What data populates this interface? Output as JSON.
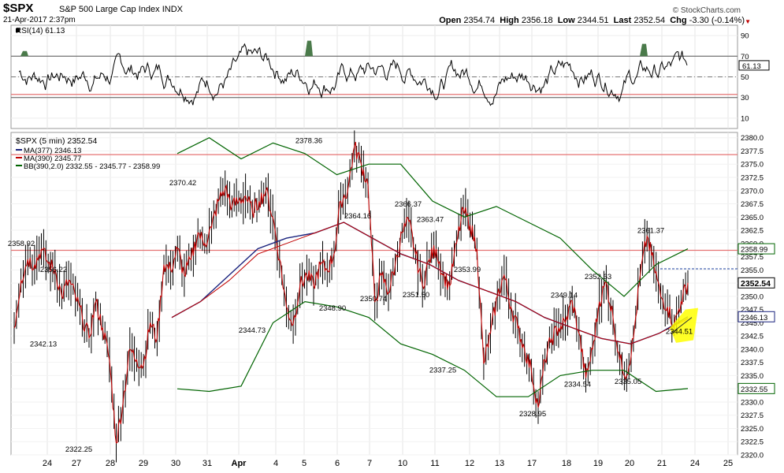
{
  "header": {
    "symbol": "$SPX",
    "name": "S&P 500 Large Cap Index",
    "exchange": "INDX",
    "date": "21-Apr-2017 2:37pm",
    "brand": "© StockCharts.com",
    "open_label": "Open",
    "open": "2354.74",
    "high_label": "High",
    "high": "2356.18",
    "low_label": "Low",
    "low": "2344.51",
    "last_label": "Last",
    "last": "2352.54",
    "chg_label": "Chg",
    "chg": "-3.30 (-0.14%)"
  },
  "colors": {
    "price": "#c00000",
    "bar": "#000000",
    "ma377": "#1a237e",
    "ma390": "#c00000",
    "bb": "#006400",
    "refline": "#e57373",
    "highlight": "#ffff00",
    "rsi": "#000000",
    "rsi_fill": "#4a7a4a"
  },
  "chart_data": [
    {
      "type": "line",
      "title": "RSI(14) 61.13",
      "series": [
        {
          "name": "RSI(14)",
          "last": 61.13
        }
      ],
      "ylim": [
        0,
        100
      ],
      "yticks": [
        10,
        30,
        50,
        70,
        90
      ],
      "reference_lines": [
        30,
        50,
        70
      ],
      "last_label": "61.13"
    },
    {
      "type": "line",
      "title": "$SPX (5 min) 2352.54",
      "legend": [
        "MA(377) 2346.13",
        "MA(390) 2345.77",
        "BB(390,2.0) 2332.55 - 2345.77 - 2358.99"
      ],
      "ylim": [
        2320,
        2381
      ],
      "yticks": [
        2320,
        2322.5,
        2325,
        2327.5,
        2330,
        2332.5,
        2335,
        2337.5,
        2340,
        2342.5,
        2345,
        2347.5,
        2350,
        2352.5,
        2355,
        2357.5,
        2360,
        2362.5,
        2365,
        2367.5,
        2370,
        2372.5,
        2375,
        2377.5,
        2380
      ],
      "x": [
        "24",
        "27",
        "28",
        "29",
        "30",
        "31",
        "Apr",
        "4",
        "5",
        "6",
        "7",
        "10",
        "11",
        "12",
        "13",
        "17",
        "18",
        "19",
        "20",
        "21",
        "24",
        "25"
      ],
      "price": {
        "name": "$SPX",
        "values": [
          2344,
          2353,
          2357,
          2356,
          2358.92,
          2356.22,
          2355,
          2350,
          2353,
          2350,
          2346,
          2342.13,
          2349,
          2344,
          2338,
          2322.25,
          2330,
          2340,
          2338,
          2337,
          2345,
          2342,
          2356,
          2355,
          2359,
          2354,
          2357,
          2362,
          2360,
          2363,
          2368,
          2370.42,
          2367,
          2368,
          2369,
          2366,
          2368,
          2370,
          2365,
          2357,
          2348,
          2344.73,
          2352,
          2354,
          2352,
          2356,
          2355,
          2358,
          2368,
          2370,
          2378.36,
          2375,
          2371,
          2348.9,
          2354,
          2350.74,
          2356,
          2362,
          2364.16,
          2358,
          2352,
          2357,
          2359,
          2354,
          2352,
          2360,
          2366.37,
          2363.47,
          2359,
          2337.25,
          2343,
          2350,
          2353.99,
          2348,
          2344,
          2340,
          2336,
          2328.95,
          2338,
          2342,
          2344,
          2345,
          2349.14,
          2343,
          2334.54,
          2340,
          2349,
          2352.63,
          2346,
          2338,
          2335.05,
          2342,
          2354,
          2361.37,
          2356,
          2350,
          2348,
          2344.51,
          2349,
          2352.54
        ]
      },
      "ma377": {
        "name": "MA(377)",
        "values": [
          2346,
          2349,
          2354,
          2359,
          2361,
          2362,
          2364,
          2361,
          2358,
          2356,
          2353,
          2351,
          2349,
          2346,
          2344,
          2342,
          2341,
          2343,
          2346.13
        ]
      },
      "ma390": {
        "name": "MA(390)",
        "values": [
          2346,
          2349,
          2353,
          2358,
          2360,
          2362,
          2364,
          2361,
          2358,
          2356,
          2353,
          2351,
          2349,
          2346,
          2344,
          2342,
          2341,
          2343,
          2345.77
        ]
      },
      "bb_upper": {
        "name": "BB upper",
        "values": [
          2377,
          2380,
          2376,
          2379,
          2377,
          2373,
          2375,
          2375,
          2368,
          2365,
          2367,
          2364,
          2361,
          2355,
          2350,
          2356,
          2358.99
        ]
      },
      "bb_lower": {
        "name": "BB lower",
        "values": [
          2332.5,
          2332,
          2333,
          2345,
          2349,
          2348,
          2346,
          2341,
          2339,
          2336,
          2331,
          2331,
          2335,
          2336,
          2336,
          2332,
          2332.55
        ]
      },
      "reference_lines": [
        2376.8,
        2358.7
      ],
      "annotations": [
        {
          "text": "2358.92",
          "value": 2358.92
        },
        {
          "text": "2356.22",
          "value": 2356.22
        },
        {
          "text": "2342.13",
          "value": 2342.13
        },
        {
          "text": "2322.25",
          "value": 2322.25
        },
        {
          "text": "2370.42",
          "value": 2370.42
        },
        {
          "text": "2344.73",
          "value": 2344.73
        },
        {
          "text": "2378.36",
          "value": 2378.36
        },
        {
          "text": "2348.90",
          "value": 2348.9
        },
        {
          "text": "2364.16",
          "value": 2364.16
        },
        {
          "text": "2350.74",
          "value": 2350.74
        },
        {
          "text": "2366.37",
          "value": 2366.37
        },
        {
          "text": "2363.47",
          "value": 2363.47
        },
        {
          "text": "2351.50",
          "value": 2351.5
        },
        {
          "text": "2337.25",
          "value": 2337.25
        },
        {
          "text": "2353.99",
          "value": 2353.99
        },
        {
          "text": "2328.95",
          "value": 2328.95
        },
        {
          "text": "2349.14",
          "value": 2349.14
        },
        {
          "text": "2334.54",
          "value": 2334.54
        },
        {
          "text": "2352.63",
          "value": 2352.63
        },
        {
          "text": "2335.05",
          "value": 2335.05
        },
        {
          "text": "2361.37",
          "value": 2361.37
        },
        {
          "text": "2344.51",
          "value": 2344.51
        }
      ],
      "right_tags": [
        "2358.99",
        "2352.54",
        "2346.13",
        "2332.55"
      ]
    }
  ]
}
